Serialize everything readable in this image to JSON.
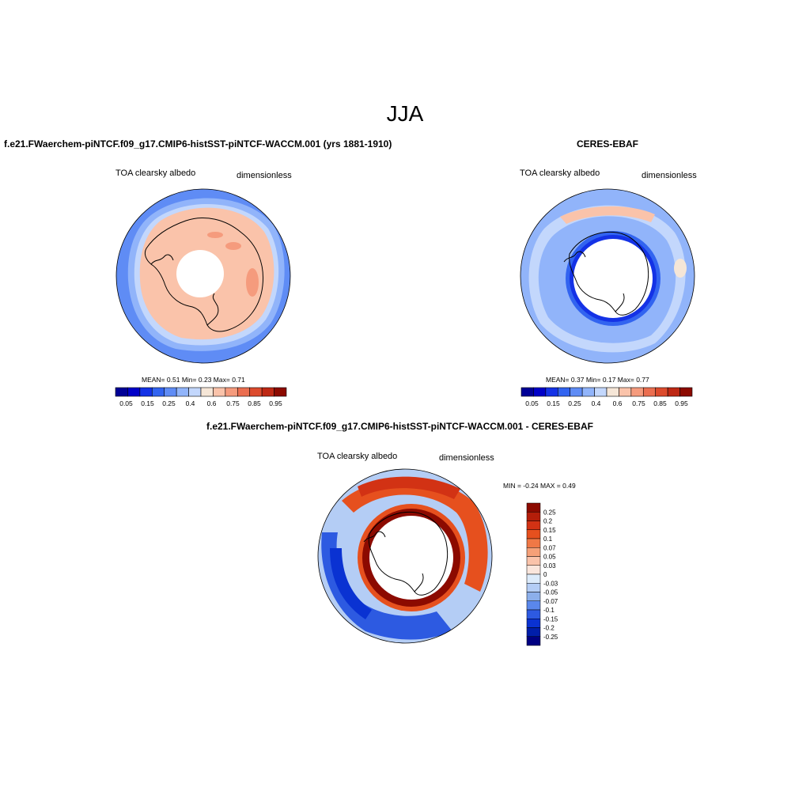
{
  "page": {
    "title": "JJA"
  },
  "panels": [
    {
      "title": "f.e21.FWaerchem-piNTCF.f09_g17.CMIP6-histSST-piNTCF-WACCM.001 (yrs 1881-1910)",
      "variable": "TOA clearsky albedo",
      "units": "dimensionless",
      "stats": {
        "mean_label": "MEAN=",
        "mean": "0.51",
        "min_label": "Min=",
        "min": "0.23",
        "max_label": "Max=",
        "max": "0.71"
      }
    },
    {
      "title": "CERES-EBAF",
      "variable": "TOA clearsky albedo",
      "units": "dimensionless",
      "stats": {
        "mean_label": "MEAN=",
        "mean": "0.37",
        "min_label": "Min=",
        "min": "0.17",
        "max_label": "Max=",
        "max": "0.77"
      }
    },
    {
      "title": "f.e21.FWaerchem-piNTCF.f09_g17.CMIP6-histSST-piNTCF-WACCM.001 - CERES-EBAF",
      "variable": "TOA clearsky albedo",
      "units": "dimensionless",
      "stats": {
        "min_label": "MIN =",
        "min": "-0.24",
        "max_label": "MAX =",
        "max": "0.49"
      }
    }
  ],
  "chart_data": [
    {
      "type": "heatmap",
      "projection": "south-polar-stereographic",
      "title": "f.e21.FWaerchem-piNTCF.f09_g17.CMIP6-histSST-piNTCF-WACCM.001 (yrs 1881-1910)",
      "variable": "TOA clearsky albedo",
      "units": "dimensionless",
      "mean": 0.51,
      "min": 0.23,
      "max": 0.71,
      "colorbar": {
        "orientation": "horizontal",
        "tick_labels": [
          "0.05",
          "0.15",
          "0.25",
          "0.4",
          "0.6",
          "0.75",
          "0.85",
          "0.95"
        ],
        "colors": [
          "#000096",
          "#0000c8",
          "#1432e6",
          "#3264f0",
          "#5f8cf5",
          "#91b4fa",
          "#c3d7fc",
          "#f5e6d7",
          "#fac3aa",
          "#f59b7d",
          "#eb6e50",
          "#dc4b2d",
          "#be2814",
          "#8c0a00"
        ]
      }
    },
    {
      "type": "heatmap",
      "projection": "south-polar-stereographic",
      "title": "CERES-EBAF",
      "variable": "TOA clearsky albedo",
      "units": "dimensionless",
      "mean": 0.37,
      "min": 0.17,
      "max": 0.77,
      "colorbar": {
        "orientation": "horizontal",
        "tick_labels": [
          "0.05",
          "0.15",
          "0.25",
          "0.4",
          "0.6",
          "0.75",
          "0.85",
          "0.95"
        ],
        "colors": [
          "#000096",
          "#0000c8",
          "#1432e6",
          "#3264f0",
          "#5f8cf5",
          "#91b4fa",
          "#c3d7fc",
          "#f5e6d7",
          "#fac3aa",
          "#f59b7d",
          "#eb6e50",
          "#dc4b2d",
          "#be2814",
          "#8c0a00"
        ]
      }
    },
    {
      "type": "heatmap",
      "projection": "south-polar-stereographic",
      "title": "f.e21.FWaerchem-piNTCF.f09_g17.CMIP6-histSST-piNTCF-WACCM.001 - CERES-EBAF",
      "variable": "TOA clearsky albedo",
      "units": "dimensionless",
      "min": -0.24,
      "max": 0.49,
      "colorbar": {
        "orientation": "vertical",
        "tick_labels": [
          "0.25",
          "0.2",
          "0.15",
          "0.1",
          "0.07",
          "0.05",
          "0.03",
          "0",
          "-0.03",
          "-0.05",
          "-0.07",
          "-0.1",
          "-0.15",
          "-0.2",
          "-0.25"
        ],
        "colors": [
          "#8c0a00",
          "#b41e0a",
          "#d23214",
          "#e6501e",
          "#f07846",
          "#f5a078",
          "#fac3aa",
          "#fae6dc",
          "#dcebfa",
          "#b4cdf5",
          "#8cafeb",
          "#5a87eb",
          "#2d5ae1",
          "#0a32d2",
          "#001eaa",
          "#000082"
        ]
      }
    }
  ]
}
